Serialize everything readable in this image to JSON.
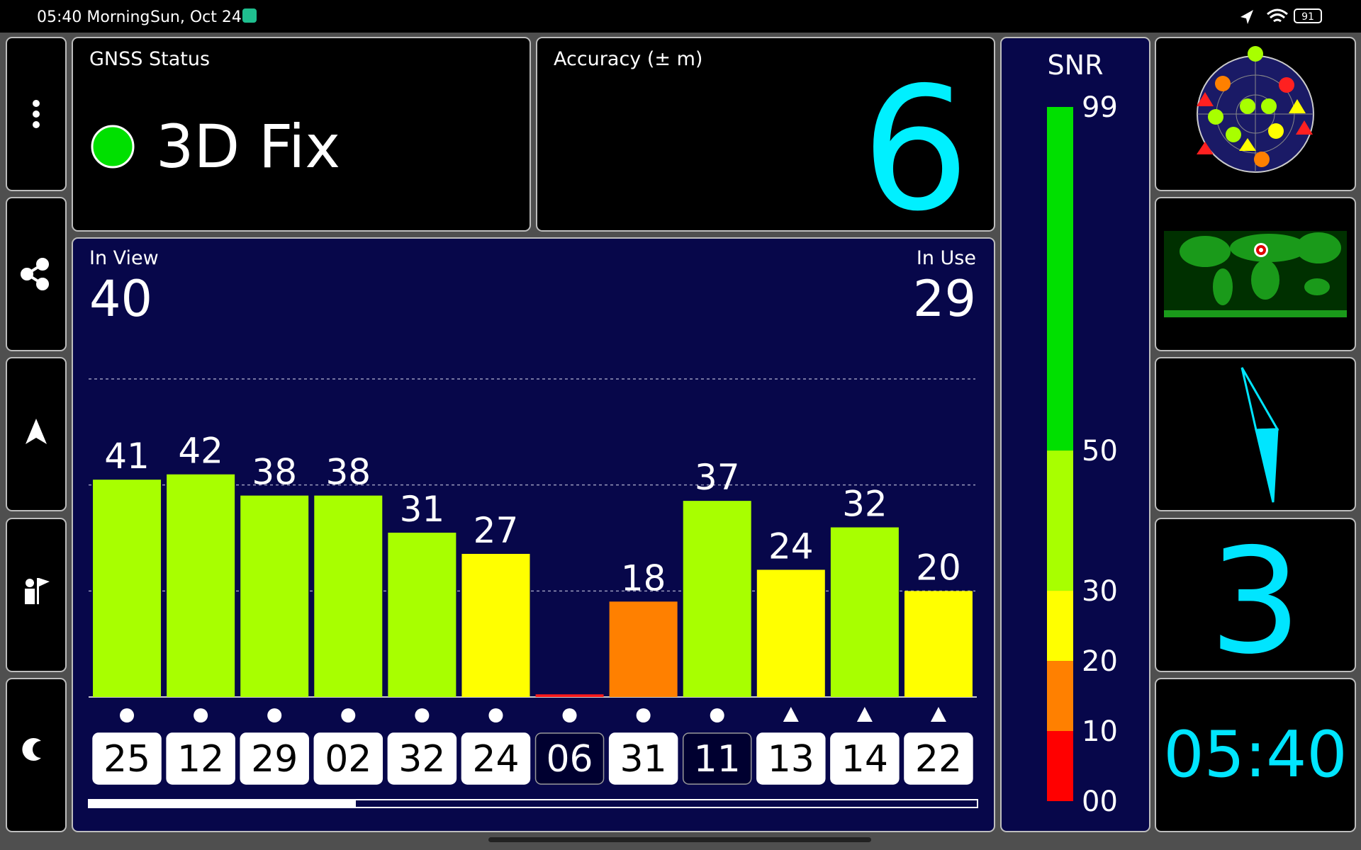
{
  "status_bar": {
    "time": "05:40 Morning",
    "date": "Sun, Oct 24",
    "battery": "91"
  },
  "gnss_status": {
    "title": "GNSS Status",
    "value": "3D Fix"
  },
  "accuracy": {
    "title": "Accuracy (± m)",
    "value": "6"
  },
  "satellites": {
    "in_view_label": "In View",
    "in_view": "40",
    "in_use_label": "In Use",
    "in_use": "29"
  },
  "chart_data": {
    "type": "bar",
    "categories": [
      "25",
      "12",
      "29",
      "02",
      "32",
      "24",
      "06",
      "31",
      "11",
      "13",
      "14",
      "22"
    ],
    "values": [
      41,
      42,
      38,
      38,
      31,
      27,
      0.5,
      18,
      37,
      24,
      32,
      20
    ],
    "value_labels": [
      "41",
      "42",
      "38",
      "38",
      "31",
      "27",
      null,
      "18",
      "37",
      "24",
      "32",
      "20"
    ],
    "colors": [
      "#a8ff00",
      "#a8ff00",
      "#a8ff00",
      "#a8ff00",
      "#a8ff00",
      "#ffff00",
      "#ff1a1a",
      "#ff8000",
      "#a8ff00",
      "#ffff00",
      "#a8ff00",
      "#ffff00"
    ],
    "markers": [
      "circle",
      "circle",
      "circle",
      "circle",
      "circle",
      "circle",
      "circle",
      "circle",
      "circle",
      "triangle",
      "triangle",
      "triangle"
    ],
    "in_use": [
      true,
      true,
      true,
      true,
      true,
      true,
      false,
      true,
      false,
      true,
      true,
      true
    ],
    "ylim": [
      0,
      60
    ],
    "yticks": [
      20,
      40,
      60
    ],
    "grid": true
  },
  "snr_scale": {
    "title": "SNR",
    "ylim": [
      0,
      99
    ],
    "ticks": [
      99,
      50,
      30,
      20,
      10,
      {
        "value": 0,
        "label": "00"
      }
    ],
    "bands": [
      {
        "from": 0,
        "to": 10,
        "color": "#ff0000"
      },
      {
        "from": 10,
        "to": 20,
        "color": "#ff8000"
      },
      {
        "from": 20,
        "to": 30,
        "color": "#ffff00"
      },
      {
        "from": 30,
        "to": 50,
        "color": "#a8ff00"
      },
      {
        "from": 50,
        "to": 99,
        "color": "#00e000"
      }
    ]
  },
  "side": {
    "satellite_count": "3",
    "clock": "05:40"
  }
}
